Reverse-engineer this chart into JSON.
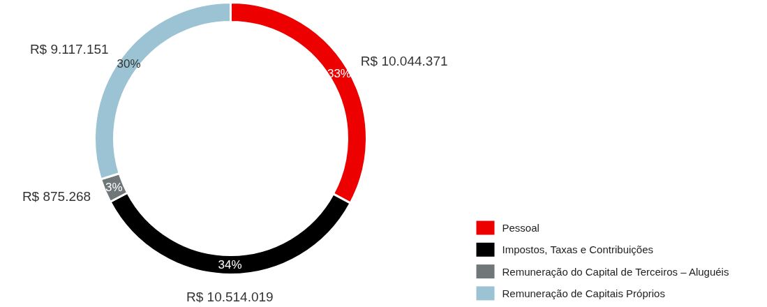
{
  "chart_data": {
    "type": "donut",
    "categories": [
      "Pessoal",
      "Impostos, Taxas e Contribuições",
      "Remuneração do Capital de Terceiros – Aluguéis",
      "Remuneração de Capitais Próprios"
    ],
    "values": [
      10044371,
      10514019,
      875268,
      9117151
    ],
    "colors": [
      "#ec0000",
      "#000000",
      "#6f7779",
      "#9bc3d3"
    ],
    "value_labels": [
      "R$ 10.044.371",
      "R$ 10.514.019",
      "R$ 875.268",
      "R$ 9.117.151"
    ],
    "annotations": [
      "33%",
      "34%",
      "3%",
      "30%"
    ],
    "legend": "bottom right"
  }
}
